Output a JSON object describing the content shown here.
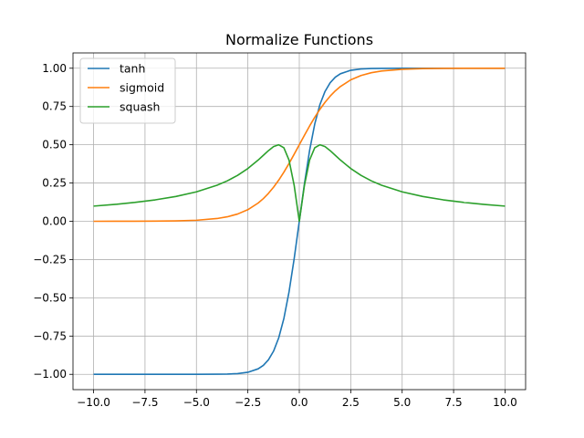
{
  "chart_data": {
    "type": "line",
    "title": "Normalize Functions",
    "xlabel": "",
    "ylabel": "",
    "xlim": [
      -11,
      11
    ],
    "ylim": [
      -1.1,
      1.1
    ],
    "grid": true,
    "legend_position": "top-left",
    "xticks": [
      -10.0,
      -7.5,
      -5.0,
      -2.5,
      0.0,
      2.5,
      5.0,
      7.5,
      10.0
    ],
    "xtick_labels": [
      "−10.0",
      "−7.5",
      "−5.0",
      "−2.5",
      "0.0",
      "2.5",
      "5.0",
      "7.5",
      "10.0"
    ],
    "yticks": [
      1.0,
      0.75,
      0.5,
      0.25,
      0.0,
      -0.25,
      -0.5,
      -0.75,
      -1.0
    ],
    "ytick_labels": [
      "1.00",
      "0.75",
      "0.50",
      "0.25",
      "0.00",
      "−0.25",
      "−0.50",
      "−0.75",
      "−1.00"
    ],
    "x": [
      -10,
      -9,
      -8,
      -7,
      -6,
      -5,
      -4,
      -3.5,
      -3,
      -2.5,
      -2,
      -1.75,
      -1.5,
      -1.25,
      -1,
      -0.75,
      -0.5,
      -0.25,
      0,
      0.25,
      0.5,
      0.75,
      1,
      1.25,
      1.5,
      1.75,
      2,
      2.5,
      3,
      3.5,
      4,
      5,
      6,
      7,
      8,
      9,
      10
    ],
    "series": [
      {
        "name": "tanh",
        "color": "#1f77b4",
        "values": [
          -1.0,
          -1.0,
          -1.0,
          -1.0,
          -1.0,
          -0.9999,
          -0.9993,
          -0.9982,
          -0.9951,
          -0.9866,
          -0.964,
          -0.9414,
          -0.9051,
          -0.8483,
          -0.7616,
          -0.6351,
          -0.4621,
          -0.2449,
          0.0,
          0.2449,
          0.4621,
          0.6351,
          0.7616,
          0.8483,
          0.9051,
          0.9414,
          0.964,
          0.9866,
          0.9951,
          0.9982,
          0.9993,
          0.9999,
          1.0,
          1.0,
          1.0,
          1.0,
          1.0
        ]
      },
      {
        "name": "sigmoid",
        "color": "#ff7f0e",
        "values": [
          0.0,
          0.0001,
          0.0003,
          0.0009,
          0.0025,
          0.0067,
          0.018,
          0.0293,
          0.0474,
          0.0759,
          0.1192,
          0.148,
          0.1824,
          0.2227,
          0.2689,
          0.3208,
          0.3775,
          0.4378,
          0.5,
          0.5622,
          0.6225,
          0.6792,
          0.7311,
          0.7773,
          0.8176,
          0.852,
          0.8808,
          0.9241,
          0.9526,
          0.9707,
          0.982,
          0.9933,
          0.9975,
          0.9991,
          0.9997,
          0.9999,
          1.0
        ]
      },
      {
        "name": "squash",
        "color": "#2ca02c",
        "values": [
          0.099,
          0.1098,
          0.1231,
          0.14,
          0.1622,
          0.1923,
          0.2353,
          0.2642,
          0.3,
          0.3448,
          0.4,
          0.4308,
          0.4615,
          0.4878,
          0.5,
          0.48,
          0.4,
          0.2353,
          0.0,
          0.2353,
          0.4,
          0.48,
          0.5,
          0.4878,
          0.4615,
          0.4308,
          0.4,
          0.3448,
          0.3,
          0.2642,
          0.2353,
          0.1923,
          0.1622,
          0.14,
          0.1231,
          0.1098,
          0.099
        ]
      }
    ]
  }
}
